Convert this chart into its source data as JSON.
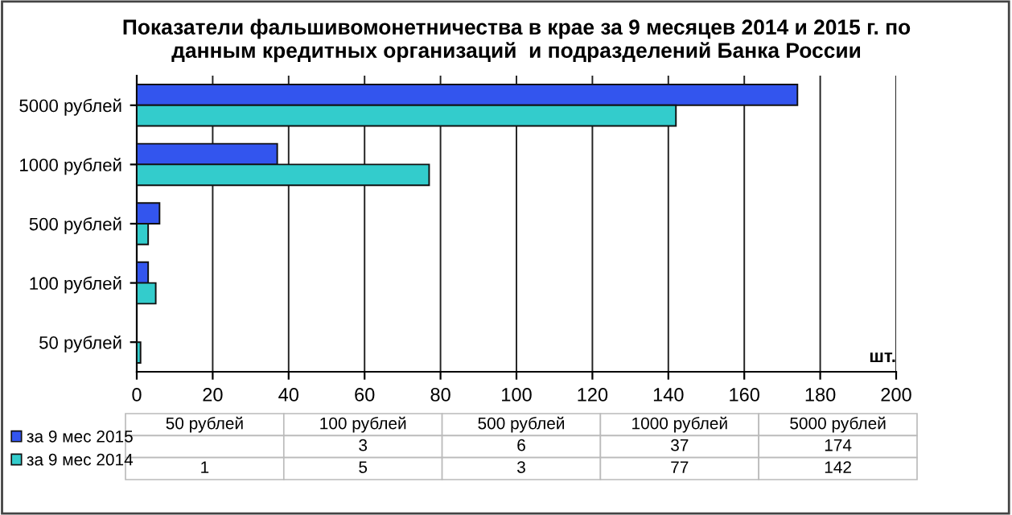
{
  "chart_data": [
    {
      "type": "bar",
      "orientation": "horizontal",
      "title": "Показатели фальшивомонетничества в крае за 9 месяцев 2014 и 2015 г. по\nданным кредитных организаций  и подразделений Банка России",
      "xlabel": "шт.",
      "categories": [
        "5000 рублей",
        "1000 рублей",
        "500 рублей",
        "100 рублей",
        "50 рублей"
      ],
      "series": [
        {
          "name": "за 9 мес 2015",
          "color": "#3355ee",
          "values": [
            174,
            37,
            6,
            3,
            null
          ]
        },
        {
          "name": "за 9 мес 2014",
          "color": "#33cccc",
          "values": [
            142,
            77,
            3,
            5,
            1
          ]
        }
      ],
      "xlim": [
        0,
        200
      ],
      "xticks": [
        0,
        20,
        40,
        60,
        80,
        100,
        120,
        140,
        160,
        180,
        200
      ],
      "grid": "x",
      "legend": "bottom"
    },
    {
      "type": "other",
      "categories": [
        "50 рублей",
        "100 рублей",
        "500 рублей",
        "1000 рублей",
        "5000 рублей"
      ],
      "series": [
        {
          "values": [
            null,
            3,
            6,
            37,
            174
          ]
        },
        {
          "values": [
            1,
            5,
            3,
            77,
            142
          ]
        }
      ],
      "data_labels": true
    }
  ]
}
